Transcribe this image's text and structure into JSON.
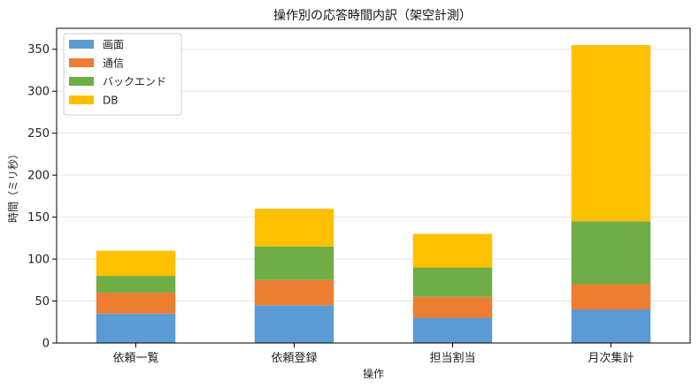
{
  "chart_data": {
    "type": "bar",
    "stacked": true,
    "title": "操作別の応答時間内訳（架空計測）",
    "xlabel": "操作",
    "ylabel": "時間（ミリ秒）",
    "categories": [
      "依頼一覧",
      "依頼登録",
      "担当割当",
      "月次集計"
    ],
    "series": [
      {
        "name": "画面",
        "color": "#5b9bd5",
        "values": [
          35,
          45,
          30,
          40
        ]
      },
      {
        "name": "通信",
        "color": "#ed7d31",
        "values": [
          25,
          30,
          25,
          30
        ]
      },
      {
        "name": "バックエンド",
        "color": "#70ad47",
        "values": [
          20,
          40,
          35,
          75
        ]
      },
      {
        "name": "DB",
        "color": "#ffc000",
        "values": [
          30,
          45,
          40,
          210
        ]
      }
    ],
    "ylim": [
      0,
      375
    ],
    "yticks": [
      0,
      50,
      100,
      150,
      200,
      250,
      300,
      350
    ],
    "grid": "y",
    "legend_position": "top-left"
  }
}
